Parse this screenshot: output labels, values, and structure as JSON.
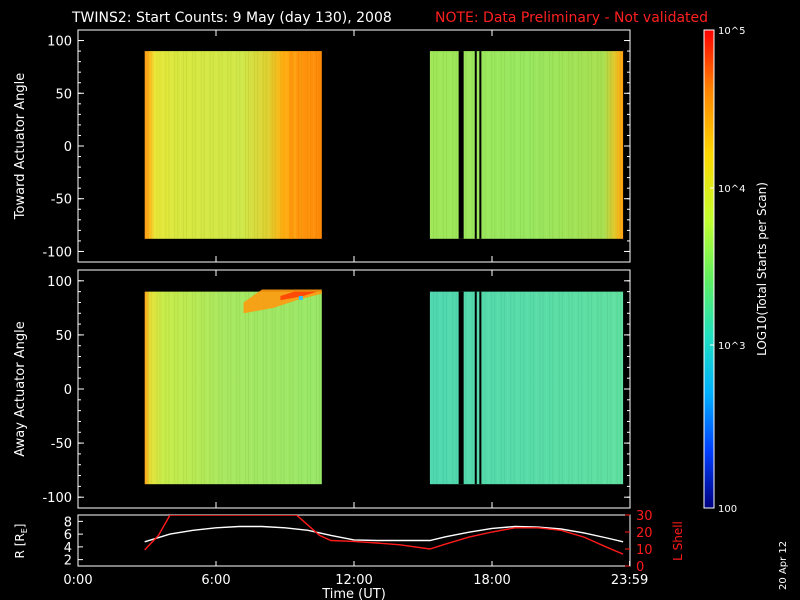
{
  "header": {
    "title": "TWINS2: Start Counts:  9 May (day 130), 2008",
    "note": "NOTE: Data Preliminary - Not validated",
    "note_color": "#ff2020"
  },
  "side_label": "20 Apr 12",
  "chart_data": [
    {
      "type": "heatmap",
      "id": "toward",
      "ylabel": "Toward Actuator Angle",
      "ylim": [
        -110,
        110
      ],
      "yticks": [
        "100",
        "50",
        "0",
        "-50",
        "-100"
      ],
      "xlim": [
        0,
        24
      ],
      "data_x_ranges": [
        [
          2.9,
          10.6
        ],
        [
          15.3,
          23.7
        ]
      ],
      "data_y_range": [
        -88,
        90
      ],
      "dropouts_hours": [
        16.55,
        17.25,
        17.45
      ]
    },
    {
      "type": "heatmap",
      "id": "away",
      "ylabel": "Away Actuator Angle",
      "ylim": [
        -110,
        110
      ],
      "yticks": [
        "100",
        "50",
        "0",
        "-50",
        "-100"
      ],
      "xlim": [
        0,
        24
      ],
      "data_x_ranges": [
        [
          2.9,
          10.6
        ],
        [
          15.3,
          23.7
        ]
      ],
      "data_y_range": [
        -88,
        90
      ],
      "dropouts_hours": [
        16.55,
        17.25,
        17.45
      ]
    },
    {
      "type": "line",
      "id": "orbit",
      "ylabel_left": "R [R",
      "ylabel_left_sub": "E",
      "ylabel_left_close": "]",
      "ylabel_right": "L Shell",
      "yticks_left": [
        "8",
        "6",
        "4",
        "2"
      ],
      "yticks_right": [
        "30",
        "20",
        "10",
        "0"
      ],
      "xlabel": "Time (UT)",
      "xticks": [
        "0:00",
        "6:00",
        "12:00",
        "18:00",
        "23:59"
      ],
      "series": [
        {
          "color": "#ffffff",
          "x": [
            2.9,
            4,
            5,
            6,
            7,
            8,
            9,
            10,
            11,
            12,
            13,
            14,
            15.3,
            16,
            17,
            18,
            19,
            20,
            21,
            22,
            23,
            23.7
          ],
          "y": [
            4.8,
            6.0,
            6.6,
            7.0,
            7.2,
            7.2,
            7.0,
            6.6,
            5.8,
            5.1,
            5.0,
            5.0,
            5.0,
            5.6,
            6.3,
            6.9,
            7.2,
            7.1,
            6.8,
            6.2,
            5.4,
            4.8
          ]
        },
        {
          "color": "#ff1a1a",
          "x": [
            2.9,
            3.5,
            4.0,
            9.5,
            10.0,
            10.5,
            11.0,
            12,
            13,
            14,
            15.3,
            16,
            17,
            18,
            19,
            20,
            21,
            22,
            23,
            23.7
          ],
          "y": [
            9.5,
            18,
            30,
            30,
            24,
            18,
            15,
            14.5,
            13.5,
            12.5,
            10,
            13,
            17,
            20,
            22.5,
            22.5,
            21,
            17,
            11,
            7
          ]
        }
      ]
    }
  ],
  "colorbar": {
    "label": "LOG10(Total Starts per Scan)",
    "ticks": [
      "10^5",
      "10^4",
      "10^3",
      "100"
    ],
    "colors": [
      "#ff0000",
      "#ff8000",
      "#ffd800",
      "#c0ff30",
      "#60f060",
      "#20e0c0",
      "#00b0ff",
      "#0040ff",
      "#000080"
    ]
  }
}
